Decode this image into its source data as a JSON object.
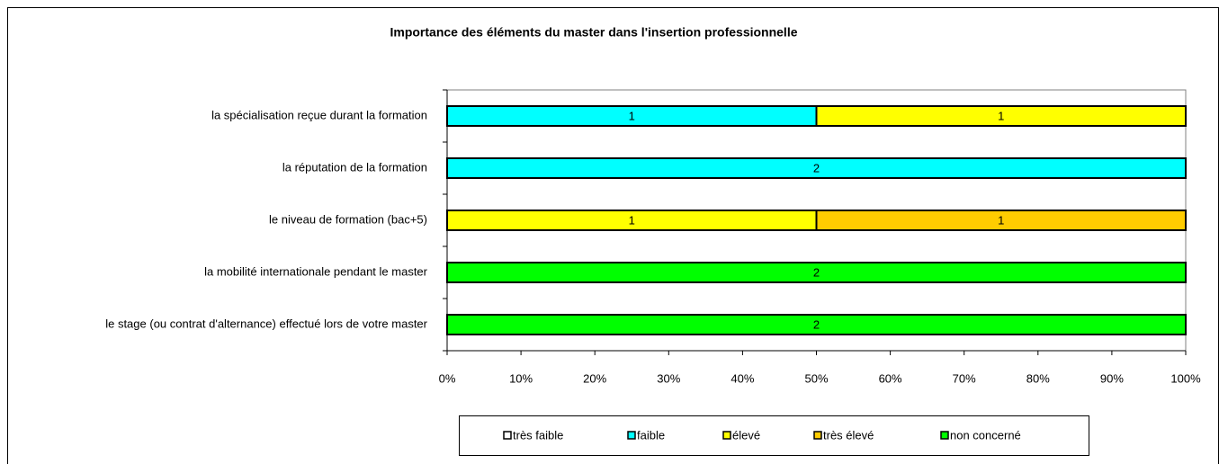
{
  "chart_data": {
    "type": "stacked_bar_horizontal",
    "stacking": "percent",
    "title": "Importance des éléments du master dans l'insertion professionnelle",
    "categories": [
      "la spécialisation reçue durant la formation",
      "la réputation de la formation",
      "le niveau de formation (bac+5)",
      "la mobilité internationale pendant le master",
      "le stage (ou contrat d'alternance) effectué lors de votre master"
    ],
    "series": [
      {
        "name": "très faible",
        "color": "#ffffff",
        "values": [
          0,
          0,
          0,
          0,
          0
        ]
      },
      {
        "name": "faible",
        "color": "#00ffff",
        "values": [
          1,
          2,
          0,
          0,
          0
        ]
      },
      {
        "name": "élevé",
        "color": "#ffff00",
        "values": [
          1,
          0,
          1,
          0,
          0
        ]
      },
      {
        "name": "très élevé",
        "color": "#ffcc00",
        "values": [
          0,
          0,
          1,
          0,
          0
        ]
      },
      {
        "name": "non concerné",
        "color": "#00ff00",
        "values": [
          0,
          0,
          0,
          2,
          2
        ]
      }
    ],
    "xlim": [
      0,
      100
    ],
    "xticks": [
      {
        "value": 0,
        "label": "0%"
      },
      {
        "value": 10,
        "label": "10%"
      },
      {
        "value": 20,
        "label": "20%"
      },
      {
        "value": 30,
        "label": "30%"
      },
      {
        "value": 40,
        "label": "40%"
      },
      {
        "value": 50,
        "label": "50%"
      },
      {
        "value": 60,
        "label": "60%"
      },
      {
        "value": 70,
        "label": "70%"
      },
      {
        "value": 80,
        "label": "80%"
      },
      {
        "value": 90,
        "label": "90%"
      },
      {
        "value": 100,
        "label": "100%"
      }
    ],
    "legend": "bottom"
  }
}
